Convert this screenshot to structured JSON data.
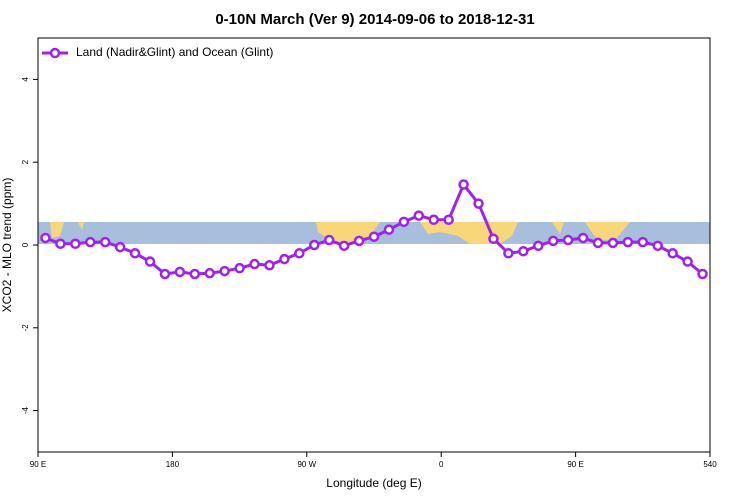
{
  "chart_data": {
    "type": "line",
    "title": "0-10N March (Ver 9)   2014-09-06 to 2018-12-31",
    "xlabel": "Longitude (deg E)",
    "ylabel": "XCO2 - MLO trend (ppm)",
    "x": [
      95,
      105,
      115,
      125,
      135,
      145,
      155,
      165,
      175,
      185,
      195,
      205,
      215,
      225,
      235,
      245,
      255,
      265,
      275,
      285,
      295,
      305,
      315,
      325,
      335,
      345,
      355,
      365,
      375,
      385,
      395,
      405,
      415,
      425,
      435,
      445,
      455,
      465,
      475,
      485,
      495,
      505,
      515,
      525,
      535
    ],
    "series": [
      {
        "name": "Land (Nadir&Glint) and Ocean (Glint)",
        "color": "#a020f0",
        "values": [
          0.17,
          0.03,
          0.03,
          0.07,
          0.07,
          -0.05,
          -0.2,
          -0.4,
          -0.7,
          -0.65,
          -0.7,
          -0.68,
          -0.63,
          -0.56,
          -0.46,
          -0.49,
          -0.34,
          -0.2,
          0,
          0.12,
          -0.02,
          0.1,
          0.2,
          0.37,
          0.56,
          0.71,
          0.61,
          0.61,
          1.46,
          1.0,
          0.15,
          -0.2,
          -0.15,
          -0.02,
          0.1,
          0.12,
          0.17,
          0.05,
          0.05,
          0.07,
          0.07,
          -0.02,
          -0.2,
          -0.4,
          -0.7
        ]
      }
    ],
    "xlim": [
      90,
      540
    ],
    "xticks": [
      {
        "value": 90,
        "label": "90 E"
      },
      180,
      {
        "value": 270,
        "label": "90 W"
      },
      {
        "value": 360,
        "label": "0"
      },
      {
        "value": 450,
        "label": "90 E"
      },
      540
    ],
    "ylim": [
      -5,
      5
    ],
    "yticks": [
      -4,
      -2,
      0,
      2,
      4
    ],
    "legend": "top-left"
  }
}
